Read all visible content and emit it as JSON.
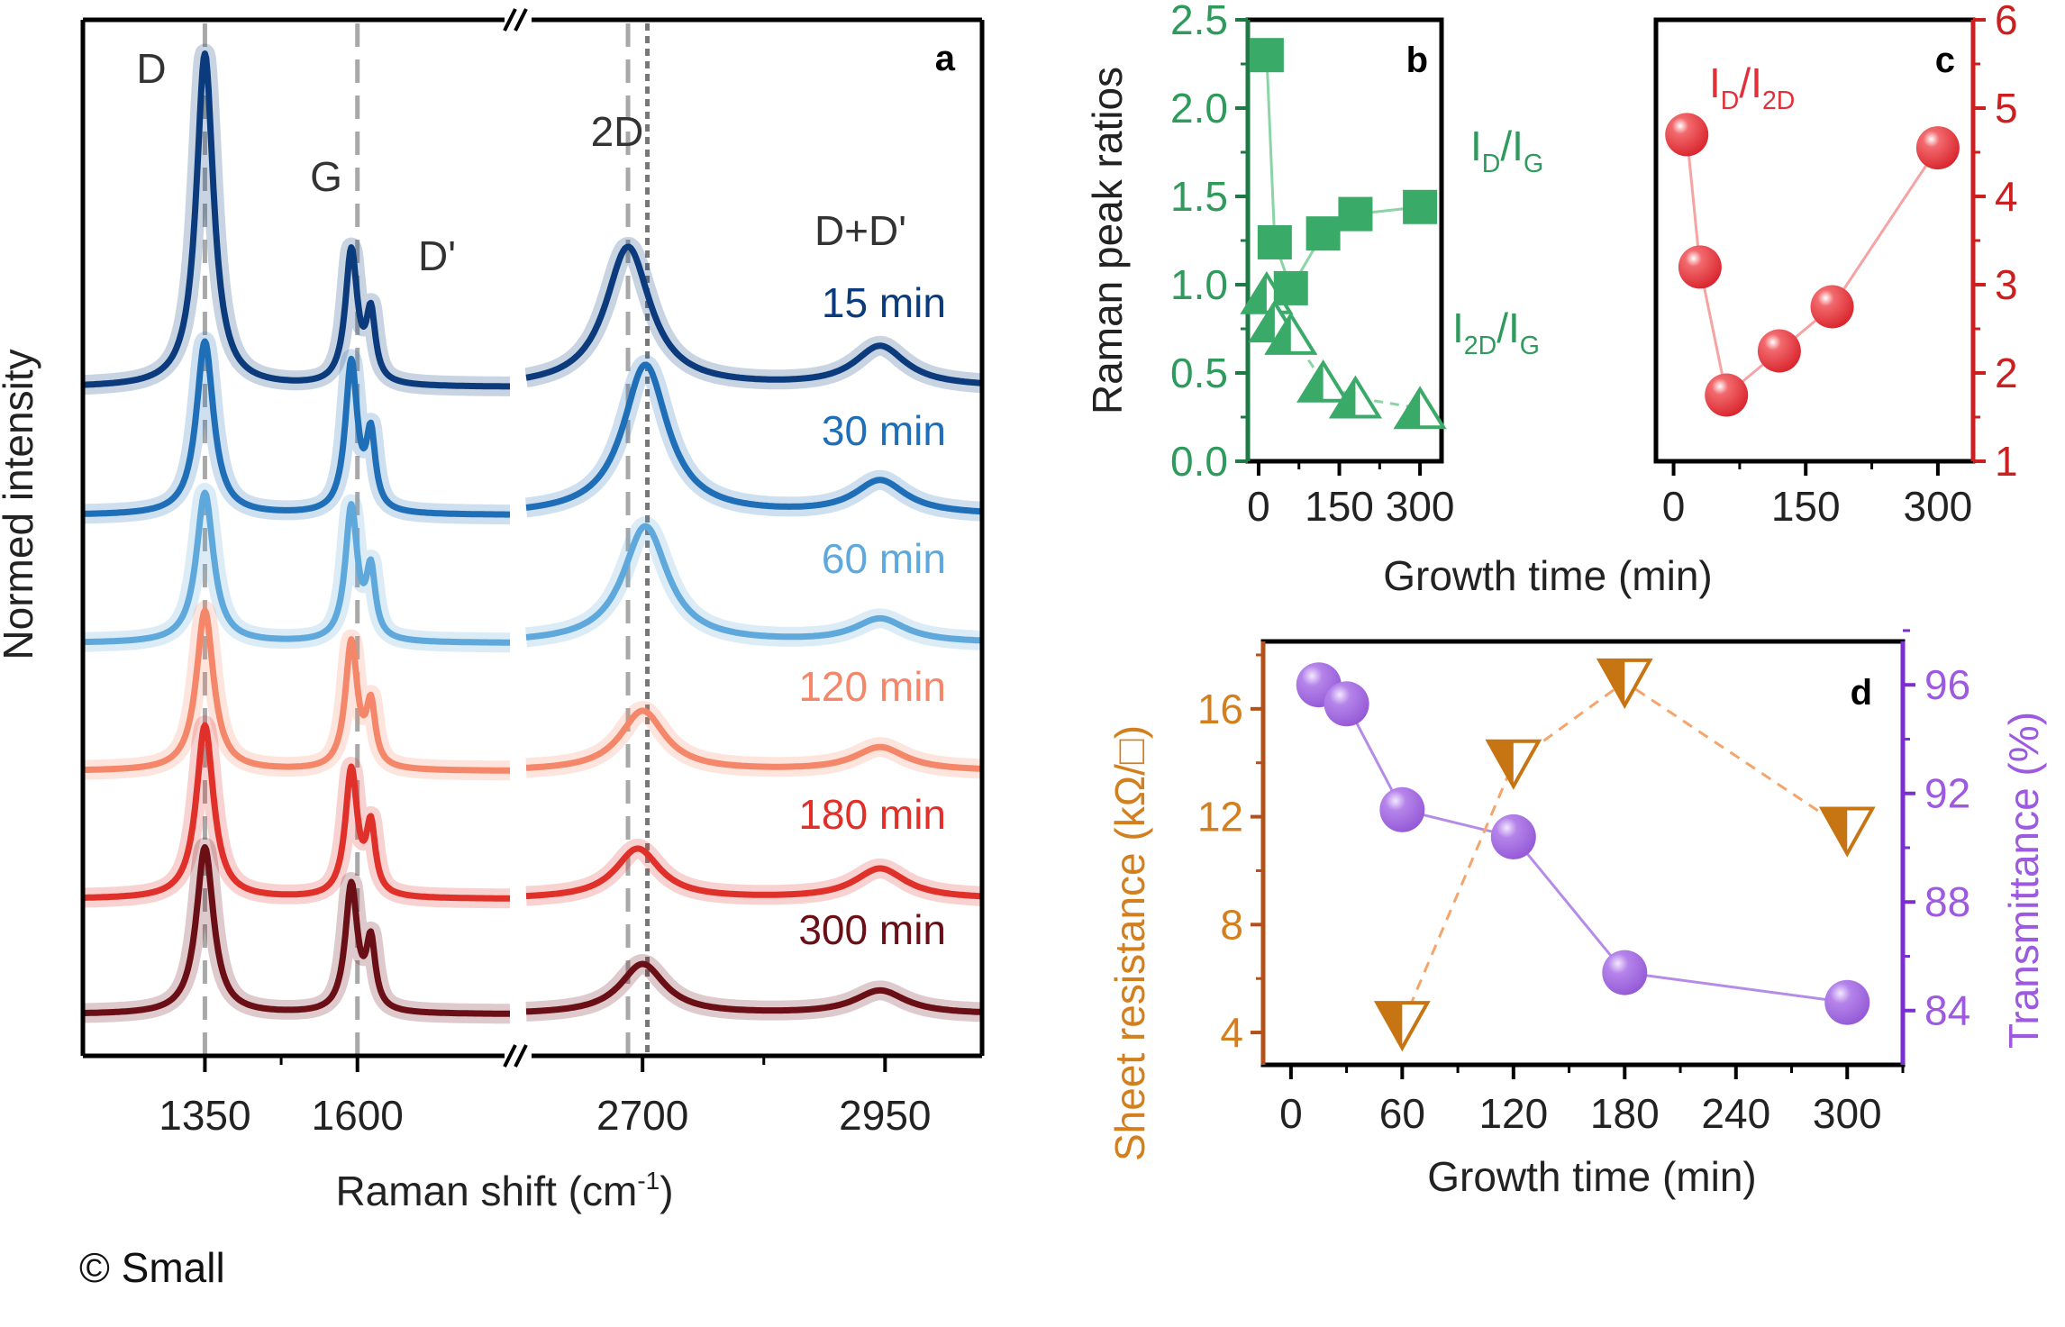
{
  "copyright": "© Small",
  "chart_data": [
    {
      "panel": "a",
      "type": "line",
      "title": "",
      "xlabel": "Raman shift (cm⁻¹)",
      "ylabel": "Normed intensity",
      "x_segments": [
        [
          1150,
          1850
        ],
        [
          2580,
          3050
        ]
      ],
      "xticks": [
        1350,
        1600,
        2700,
        2950
      ],
      "axis_break": true,
      "peak_labels": [
        {
          "text": "D",
          "x": 1350
        },
        {
          "text": "G",
          "x": 1590
        },
        {
          "text": "D'",
          "x": 1620
        },
        {
          "text": "2D",
          "x": 2690
        },
        {
          "text": "D+D'",
          "x": 2950
        }
      ],
      "reference_lines": [
        {
          "x": 1350,
          "style": "dashed"
        },
        {
          "x": 1600,
          "style": "dashed"
        },
        {
          "x": 2685,
          "style": "dashed"
        },
        {
          "x": 2705,
          "style": "dotted"
        }
      ],
      "series": [
        {
          "name": "15 min",
          "color": "#0b3b7c",
          "peaks": {
            "D": 1.0,
            "G": 0.4,
            "Dp": 0.2,
            "2D": 0.42,
            "2D_pos": 2685,
            "DDp": 0.12
          }
        },
        {
          "name": "30 min",
          "color": "#1f6fb8",
          "peaks": {
            "D": 0.52,
            "G": 0.45,
            "Dp": 0.22,
            "2D": 0.45,
            "2D_pos": 2703,
            "DDp": 0.1
          }
        },
        {
          "name": "60 min",
          "color": "#5ea8dc",
          "peaks": {
            "D": 0.45,
            "G": 0.4,
            "Dp": 0.2,
            "2D": 0.35,
            "2D_pos": 2703,
            "DDp": 0.07
          }
        },
        {
          "name": "120 min",
          "color": "#f4876a",
          "peaks": {
            "D": 0.48,
            "G": 0.38,
            "Dp": 0.18,
            "2D": 0.18,
            "2D_pos": 2700,
            "DDp": 0.07
          }
        },
        {
          "name": "180 min",
          "color": "#e0302a",
          "peaks": {
            "D": 0.52,
            "G": 0.38,
            "Dp": 0.2,
            "2D": 0.15,
            "2D_pos": 2695,
            "DDp": 0.09
          }
        },
        {
          "name": "300 min",
          "color": "#6b0f17",
          "peaks": {
            "D": 0.5,
            "G": 0.38,
            "Dp": 0.2,
            "2D": 0.15,
            "2D_pos": 2700,
            "DDp": 0.07
          }
        }
      ]
    },
    {
      "panel": "b",
      "type": "scatter",
      "xlabel": "Growth time (min)",
      "ylabel": "Raman peak ratios",
      "xlim": [
        -20,
        340
      ],
      "ylim": [
        0.0,
        2.5
      ],
      "xticks": [
        0,
        150,
        300
      ],
      "yticks": [
        0.0,
        0.5,
        1.0,
        1.5,
        2.0,
        2.5
      ],
      "x": [
        15,
        30,
        60,
        120,
        180,
        300
      ],
      "series": [
        {
          "name": "I_D/I_G",
          "label_main": "I",
          "sub1": "D",
          "sep": "/I",
          "sub2": "G",
          "marker": "square",
          "values": [
            2.3,
            1.24,
            0.98,
            1.29,
            1.4,
            1.44
          ],
          "color": "#3aaa68"
        },
        {
          "name": "I_2D/I_G",
          "label_main": "I",
          "sub1": "2D",
          "sep": "/I",
          "sub2": "G",
          "marker": "half-triangle",
          "values": [
            0.95,
            0.79,
            0.72,
            0.45,
            0.36,
            0.3
          ],
          "color": "#3aaa68"
        }
      ],
      "axis_color": "#1e7a45"
    },
    {
      "panel": "c",
      "type": "scatter",
      "xlabel": "Growth time (min)",
      "ylabel": "",
      "xlim": [
        -20,
        340
      ],
      "ylim": [
        1,
        6
      ],
      "xticks": [
        0,
        150,
        300
      ],
      "yticks": [
        1,
        2,
        3,
        4,
        5,
        6
      ],
      "y_axis_side": "right",
      "x": [
        15,
        30,
        60,
        120,
        180,
        300
      ],
      "series": [
        {
          "name": "I_D/I_2D",
          "label_main": "I",
          "sub1": "D",
          "sep": "/I",
          "sub2": "2D",
          "marker": "sphere",
          "values": [
            4.7,
            3.2,
            1.75,
            2.25,
            2.75,
            4.55
          ],
          "color": "#e8343a"
        }
      ],
      "axis_color": "#cc1f1f"
    },
    {
      "panel": "d",
      "type": "scatter",
      "xlabel": "Growth time (min)",
      "ylabel_left": "Sheet resistance (kΩ/□)",
      "ylabel_right": "Transmittance (%)",
      "xlim": [
        -15,
        330
      ],
      "ylim_left": [
        2.8,
        18.5
      ],
      "ylim_right": [
        82,
        97.6
      ],
      "xticks": [
        0,
        60,
        120,
        180,
        240,
        300
      ],
      "yticks_left": [
        4,
        8,
        12,
        16
      ],
      "yticks_right": [
        84,
        88,
        92,
        96
      ],
      "series": [
        {
          "name": "Sheet resistance",
          "axis": "left",
          "marker": "half-down-triangle",
          "linestyle": "dashed",
          "x": [
            60,
            120,
            180,
            300
          ],
          "values": [
            4.3,
            14.0,
            17.0,
            11.5
          ],
          "color": "#c77412",
          "line_color": "#f5a46a"
        },
        {
          "name": "Transmittance",
          "axis": "right",
          "marker": "sphere",
          "linestyle": "solid",
          "x": [
            15,
            30,
            60,
            120,
            180,
            300
          ],
          "values": [
            96.0,
            95.3,
            91.4,
            90.4,
            85.4,
            84.3
          ],
          "color": "#a96fe0",
          "line_color": "#b58be8"
        }
      ],
      "left_axis_color": "#b4501a",
      "left_label_color": "#d47f1e",
      "right_axis_color": "#7a2fd0",
      "right_label_color": "#9d5ae0"
    }
  ]
}
